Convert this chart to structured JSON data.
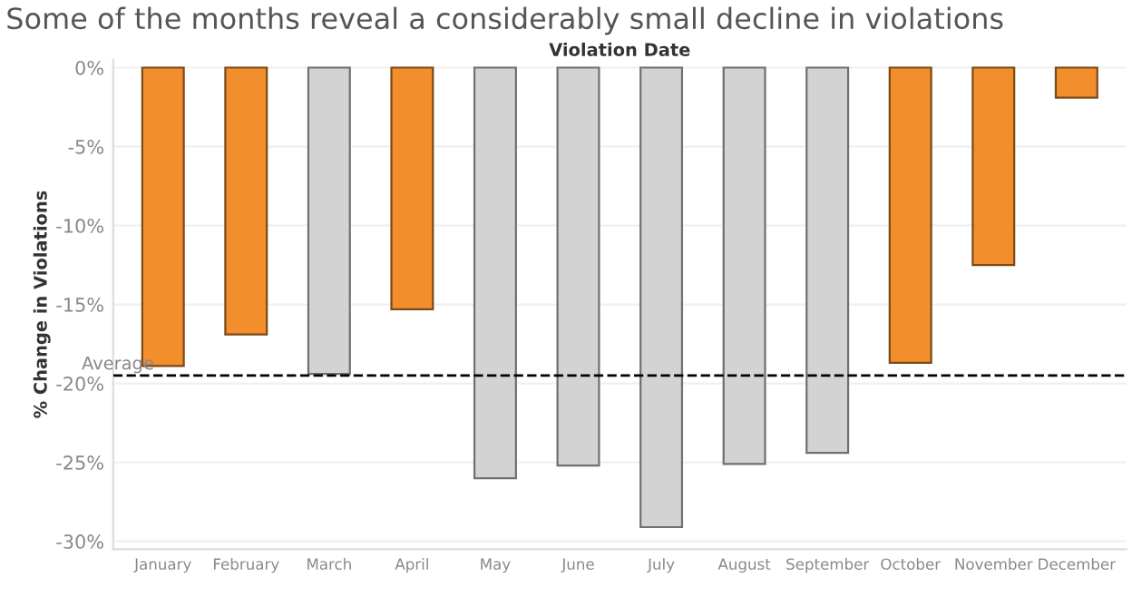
{
  "chart_data": {
    "type": "bar",
    "title": "Some of the months reveal a considerably small decline in violations",
    "xlabel": "Violation Date",
    "ylabel": "% Change in Violations",
    "categories": [
      "January",
      "February",
      "March",
      "April",
      "May",
      "June",
      "July",
      "August",
      "September",
      "October",
      "November",
      "December"
    ],
    "values": [
      -18.9,
      -16.9,
      -19.4,
      -15.3,
      -26.0,
      -25.2,
      -29.1,
      -25.1,
      -24.4,
      -18.7,
      -12.5,
      -1.9
    ],
    "colors": [
      "#f28e2b",
      "#f28e2b",
      "#d3d3d3",
      "#f28e2b",
      "#d3d3d3",
      "#d3d3d3",
      "#d3d3d3",
      "#d3d3d3",
      "#d3d3d3",
      "#f28e2b",
      "#f28e2b",
      "#f28e2b"
    ],
    "ylim": [
      -30.5,
      0.5
    ],
    "yticks": [
      {
        "value": 0,
        "label": "0%"
      },
      {
        "value": -5,
        "label": "-5%"
      },
      {
        "value": -10,
        "label": "-10%"
      },
      {
        "value": -15,
        "label": "-15%"
      },
      {
        "value": -20,
        "label": "-20%"
      },
      {
        "value": -25,
        "label": "-25%"
      },
      {
        "value": -30,
        "label": "-30%"
      }
    ],
    "ref_lines": [
      {
        "axis": "y",
        "value": -19.5,
        "label": "Average",
        "color": "#000000",
        "line_style": "dashed"
      }
    ],
    "grid": "y"
  }
}
